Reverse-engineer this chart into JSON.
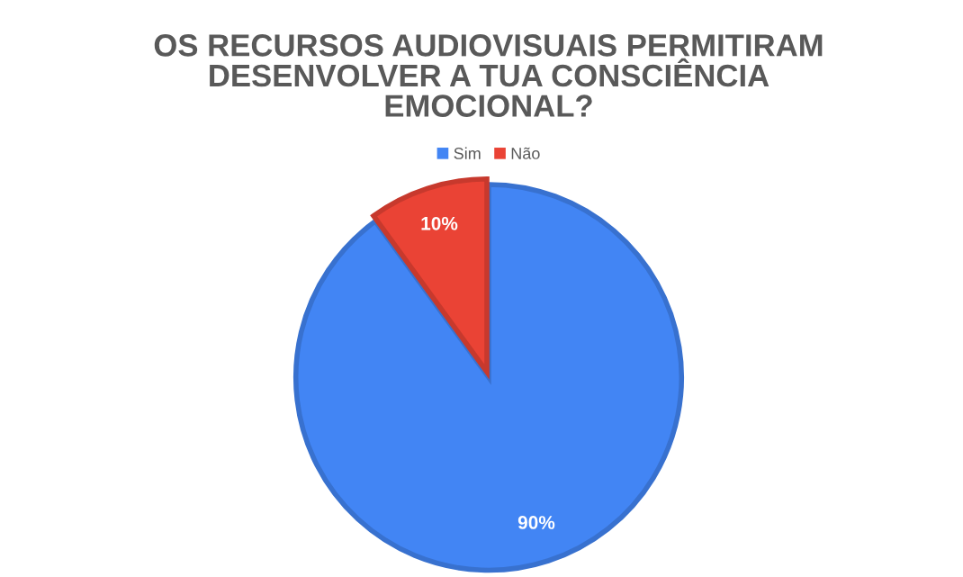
{
  "chart_data": {
    "type": "pie",
    "title": "OS RECURSOS AUDIOVISUAIS PERMITIRAM\nDESENVOLVER A TUA CONSCIÊNCIA\nEMOCIONAL?",
    "categories": [
      "Sim",
      "Não"
    ],
    "values": [
      90,
      10
    ],
    "colors": [
      "#4285f4",
      "#ea4335"
    ],
    "value_labels": [
      "90%",
      "10%"
    ],
    "legend": "top"
  }
}
